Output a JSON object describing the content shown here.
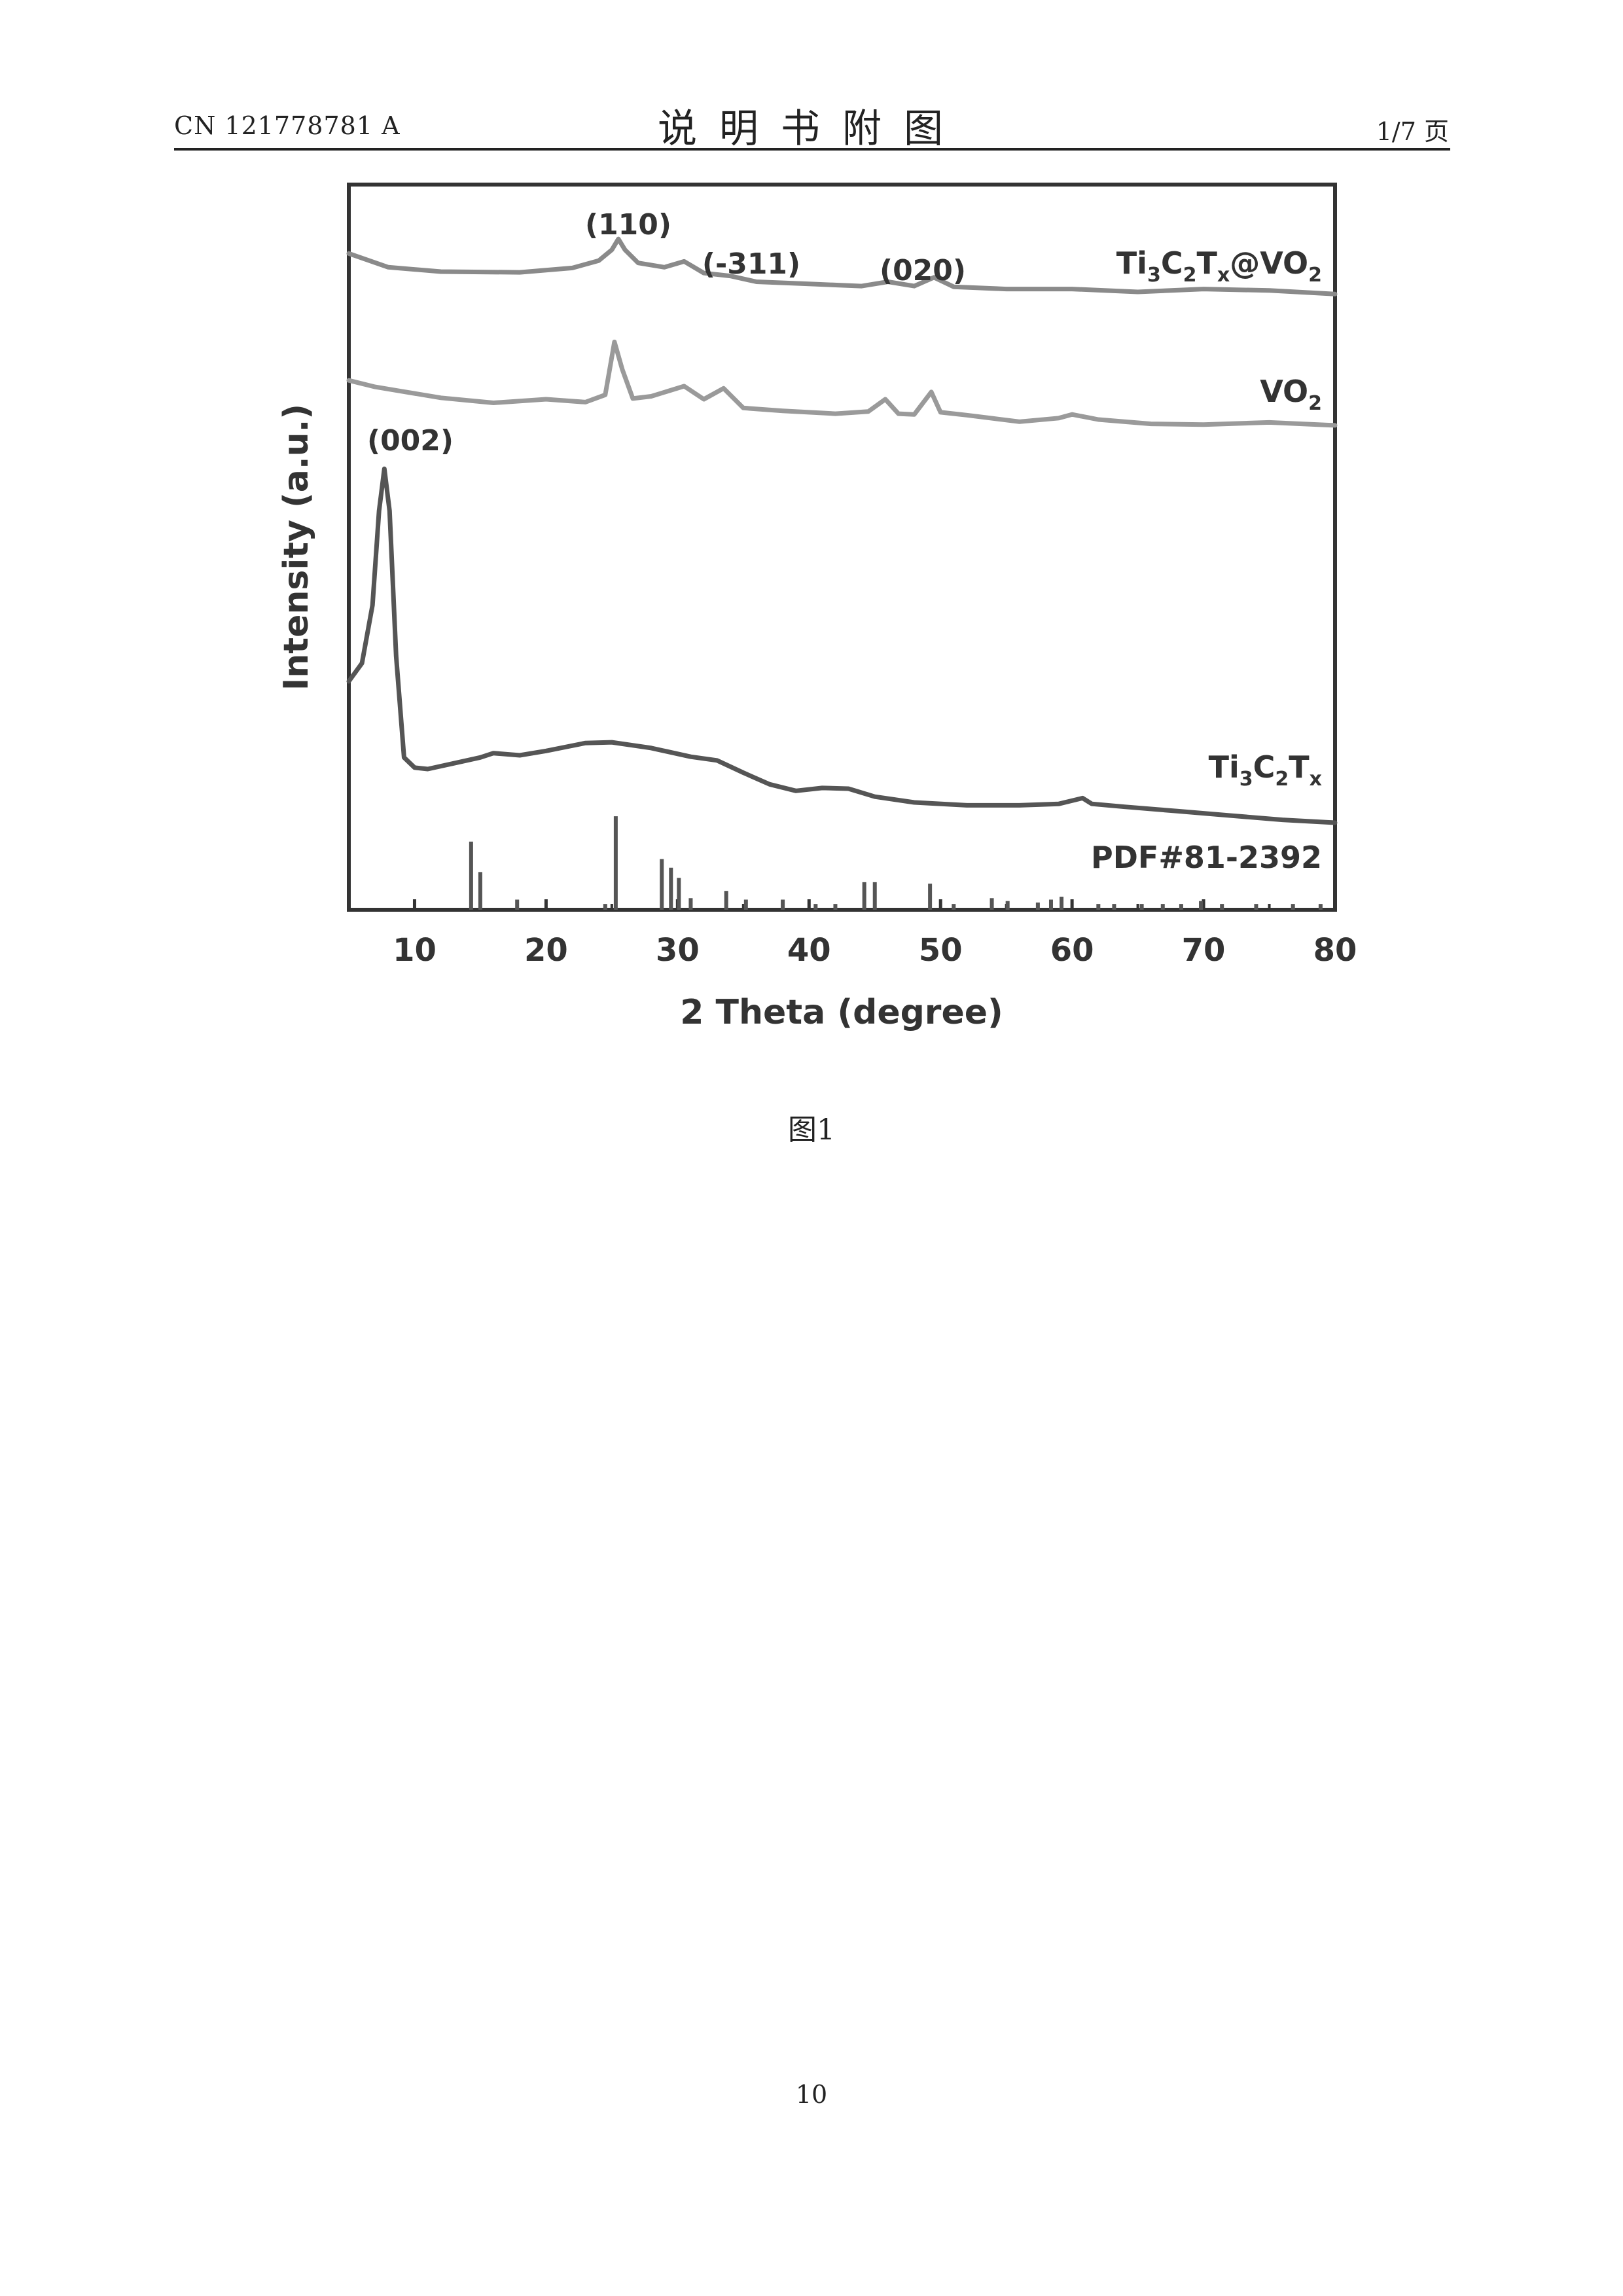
{
  "header": {
    "doc_number": "CN 121778781 A",
    "section_title": "说明书附图",
    "page_of": "1/7 页"
  },
  "figure_caption": "图1",
  "page_number": "10",
  "chart_data": {
    "type": "line",
    "xlabel": "2 Theta (degree)",
    "ylabel": "Intensity (a.u.)",
    "xlim": [
      5,
      80
    ],
    "ylim": [
      0,
      100
    ],
    "x_ticks": [
      10,
      20,
      30,
      40,
      50,
      60,
      70,
      80
    ],
    "y_ticks_shown": false,
    "grid": false,
    "legend": "labels at right end of each curve",
    "series": [
      {
        "name": "Ti3C2Tx@VO2",
        "color": "#8a8a8a",
        "points": [
          [
            5,
            90.5
          ],
          [
            8,
            88.6
          ],
          [
            12,
            88.0
          ],
          [
            18,
            87.9
          ],
          [
            22,
            88.5
          ],
          [
            24,
            89.5
          ],
          [
            25,
            91.0
          ],
          [
            25.5,
            92.5
          ],
          [
            26,
            91.0
          ],
          [
            27,
            89.2
          ],
          [
            29,
            88.6
          ],
          [
            30.5,
            89.4
          ],
          [
            32,
            87.8
          ],
          [
            34,
            87.4
          ],
          [
            36,
            86.6
          ],
          [
            40,
            86.3
          ],
          [
            44,
            86.0
          ],
          [
            46,
            86.6
          ],
          [
            48,
            86.0
          ],
          [
            49.5,
            87.2
          ],
          [
            51,
            85.9
          ],
          [
            55,
            85.6
          ],
          [
            60,
            85.6
          ],
          [
            65,
            85.2
          ],
          [
            70,
            85.6
          ],
          [
            75,
            85.4
          ],
          [
            80,
            84.9
          ]
        ]
      },
      {
        "name": "VO2",
        "color": "#9a9a9a",
        "points": [
          [
            5,
            73.0
          ],
          [
            7,
            72.1
          ],
          [
            9,
            71.5
          ],
          [
            12,
            70.6
          ],
          [
            16,
            69.9
          ],
          [
            20,
            70.4
          ],
          [
            23,
            70.0
          ],
          [
            24.5,
            71.0
          ],
          [
            25.2,
            78.3
          ],
          [
            25.8,
            74.5
          ],
          [
            26.6,
            70.5
          ],
          [
            28,
            70.8
          ],
          [
            30.5,
            72.2
          ],
          [
            32,
            70.4
          ],
          [
            33.5,
            71.9
          ],
          [
            35,
            69.2
          ],
          [
            38,
            68.8
          ],
          [
            42,
            68.4
          ],
          [
            44.5,
            68.7
          ],
          [
            45.8,
            70.4
          ],
          [
            46.8,
            68.4
          ],
          [
            48,
            68.3
          ],
          [
            49.3,
            71.4
          ],
          [
            50,
            68.6
          ],
          [
            52,
            68.2
          ],
          [
            56,
            67.3
          ],
          [
            59,
            67.8
          ],
          [
            60,
            68.3
          ],
          [
            62,
            67.6
          ],
          [
            66,
            67.0
          ],
          [
            70,
            66.9
          ],
          [
            75,
            67.2
          ],
          [
            80,
            66.8
          ]
        ]
      },
      {
        "name": "Ti3C2Tx",
        "color": "#555555",
        "points": [
          [
            5,
            31.5
          ],
          [
            6,
            34.0
          ],
          [
            6.8,
            42.0
          ],
          [
            7.3,
            55.0
          ],
          [
            7.7,
            60.8
          ],
          [
            8.1,
            55.0
          ],
          [
            8.6,
            35.0
          ],
          [
            9.2,
            21.0
          ],
          [
            10,
            19.6
          ],
          [
            11,
            19.4
          ],
          [
            13,
            20.2
          ],
          [
            15,
            21.0
          ],
          [
            16,
            21.6
          ],
          [
            18,
            21.3
          ],
          [
            20,
            21.9
          ],
          [
            23,
            23.0
          ],
          [
            25,
            23.1
          ],
          [
            28,
            22.3
          ],
          [
            31,
            21.1
          ],
          [
            33,
            20.6
          ],
          [
            35,
            18.9
          ],
          [
            37,
            17.3
          ],
          [
            39,
            16.4
          ],
          [
            41,
            16.8
          ],
          [
            43,
            16.7
          ],
          [
            45,
            15.6
          ],
          [
            48,
            14.8
          ],
          [
            52,
            14.4
          ],
          [
            56,
            14.4
          ],
          [
            59,
            14.6
          ],
          [
            60.8,
            15.4
          ],
          [
            61.5,
            14.6
          ],
          [
            64,
            14.2
          ],
          [
            68,
            13.6
          ],
          [
            72,
            13.0
          ],
          [
            76,
            12.4
          ],
          [
            80,
            12.0
          ]
        ]
      },
      {
        "name": "PDF#81-2392",
        "type": "reference_sticks",
        "color": "#555555",
        "sticks": [
          [
            14.3,
            9.4
          ],
          [
            15.0,
            5.2
          ],
          [
            17.8,
            1.4
          ],
          [
            24.5,
            0.8
          ],
          [
            25.3,
            12.9
          ],
          [
            28.8,
            7.0
          ],
          [
            29.5,
            5.8
          ],
          [
            30.1,
            4.4
          ],
          [
            31.0,
            1.6
          ],
          [
            33.7,
            2.6
          ],
          [
            35.2,
            1.4
          ],
          [
            38.0,
            1.4
          ],
          [
            40.5,
            0.8
          ],
          [
            42.0,
            0.8
          ],
          [
            44.2,
            3.8
          ],
          [
            45.0,
            3.8
          ],
          [
            49.2,
            3.6
          ],
          [
            51.0,
            0.8
          ],
          [
            53.9,
            1.6
          ],
          [
            55.1,
            1.2
          ],
          [
            57.4,
            1.0
          ],
          [
            58.4,
            1.4
          ],
          [
            59.2,
            1.8
          ],
          [
            62.0,
            0.8
          ],
          [
            63.2,
            0.8
          ],
          [
            65.3,
            0.8
          ],
          [
            66.9,
            0.8
          ],
          [
            68.3,
            0.8
          ],
          [
            69.8,
            1.2
          ],
          [
            71.4,
            0.8
          ],
          [
            74.0,
            0.8
          ],
          [
            76.8,
            0.8
          ],
          [
            78.9,
            0.8
          ]
        ]
      }
    ],
    "labels": {
      "tc_vo2": [
        "Ti",
        "3",
        "C",
        "2",
        "T",
        "x",
        "@VO",
        "2"
      ],
      "vo2": [
        "VO",
        "2"
      ],
      "tc": [
        "Ti",
        "3",
        "C",
        "2",
        "T",
        "x"
      ],
      "pdf": "PDF#81-2392"
    },
    "annotations": [
      {
        "text": "(110)",
        "x": 24.5,
        "y": 96.0
      },
      {
        "text": "(-311)",
        "x": 33.8,
        "y": 89.8
      },
      {
        "text": "(020)",
        "x": 48.6,
        "y": 88.5
      },
      {
        "text": "(002)",
        "x": 9.0,
        "y": 65.0
      }
    ]
  }
}
